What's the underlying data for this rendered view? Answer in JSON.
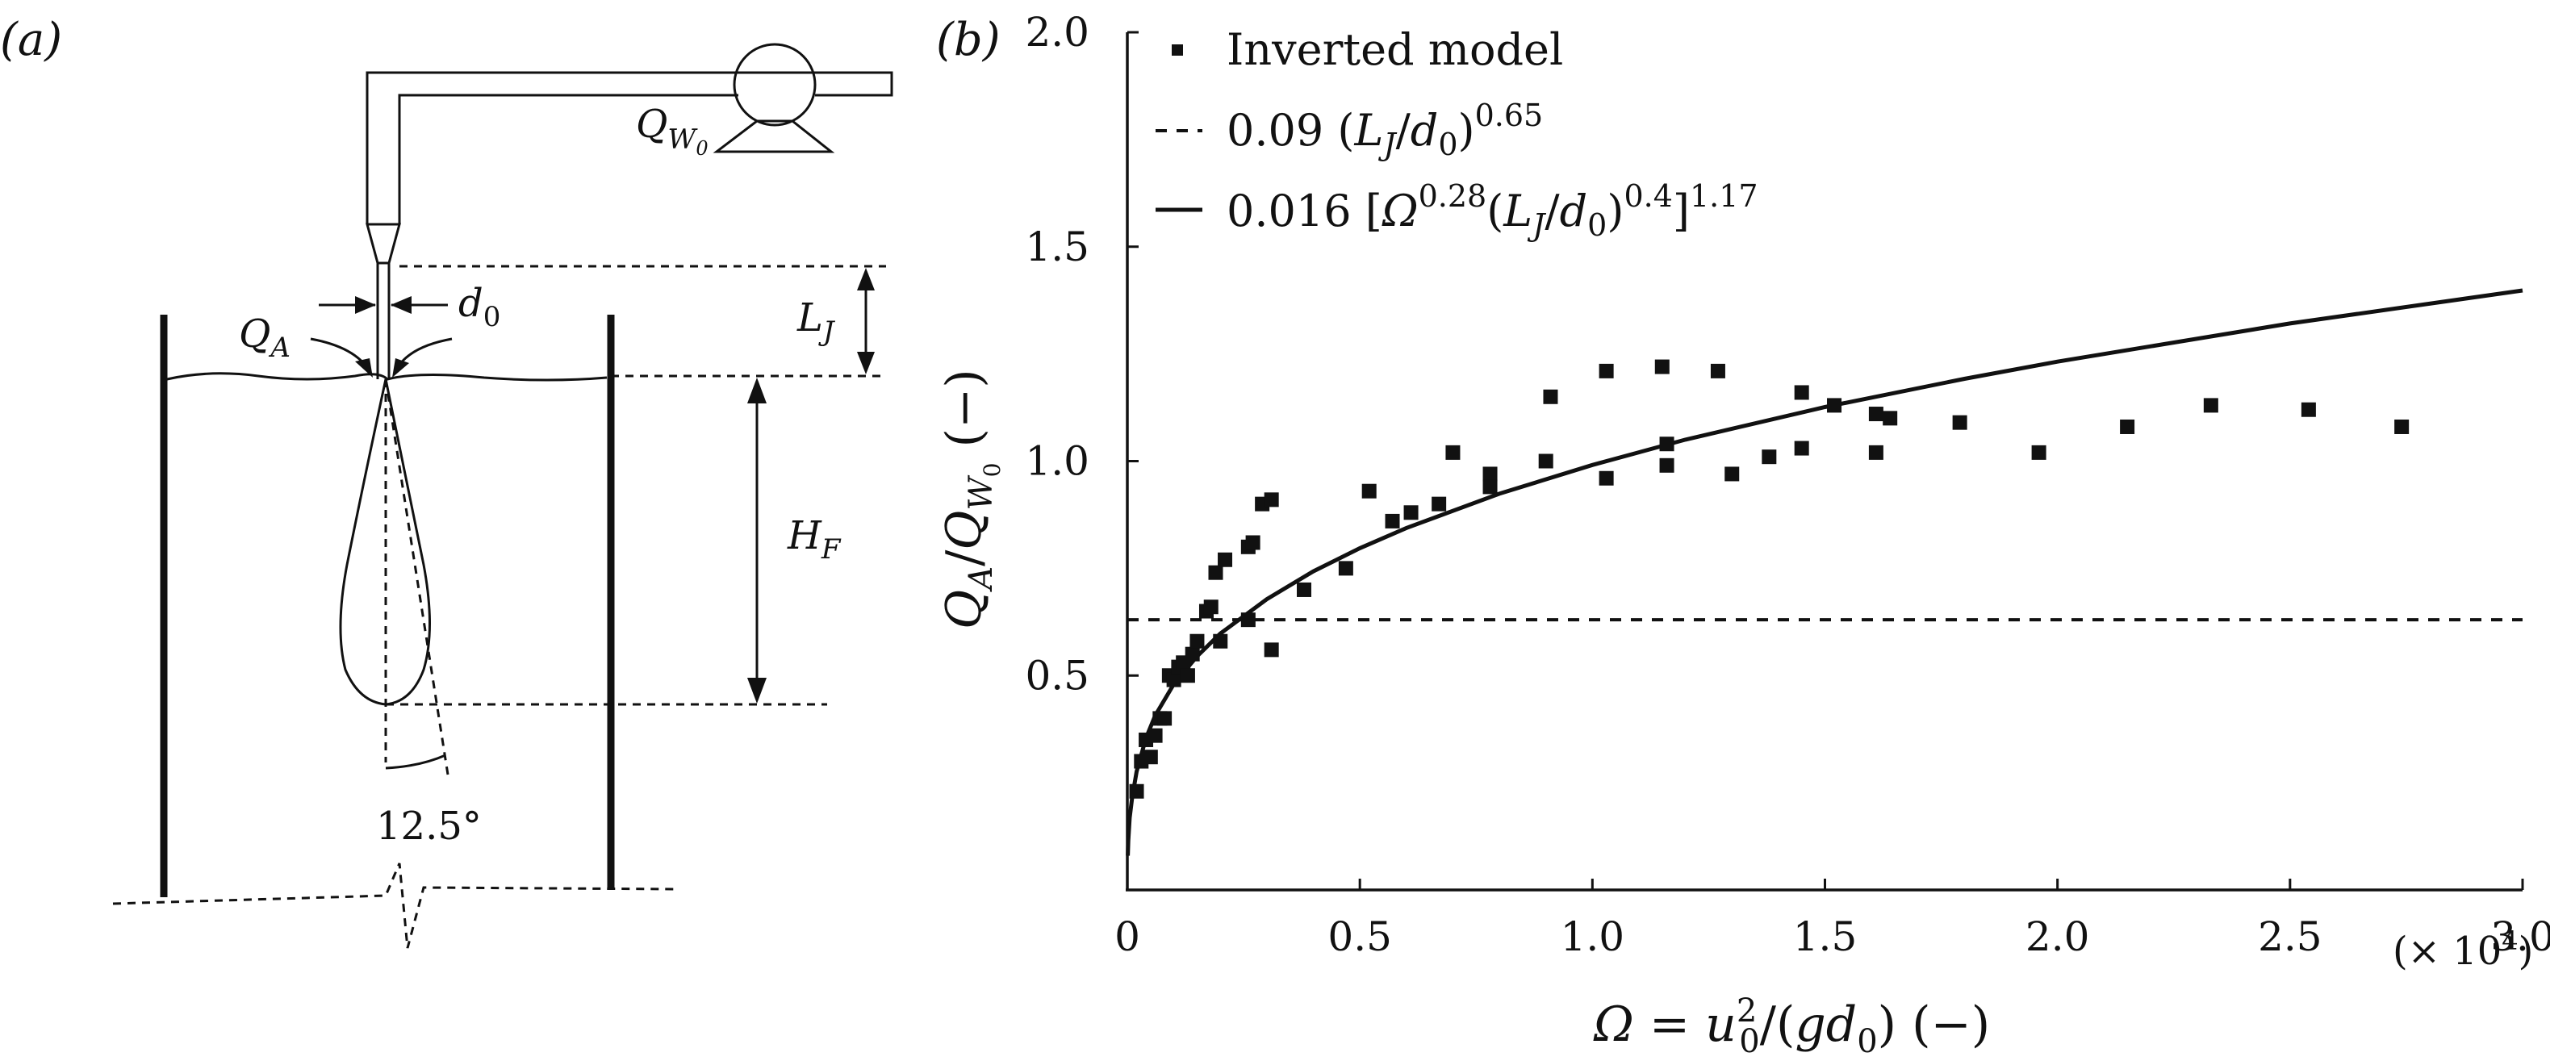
{
  "panel_a": {
    "label": "(a)",
    "q_w0": "Q",
    "q_w0_sub": "W",
    "q_w0_subsub": "0",
    "q_a": "Q",
    "q_a_sub": "A",
    "d0": "d",
    "d0_sub": "0",
    "l_j": "L",
    "l_j_sub": "J",
    "h_f": "H",
    "h_f_sub": "F",
    "angle": "12.5°"
  },
  "panel_b": {
    "label": "(b)",
    "legend": {
      "markers_label": "Inverted model",
      "dashed_label": "0.09 (L_J/d_0)^0.65",
      "solid_label": "0.016 [Ω^0.28 (L_J/d_0)^0.4]^1.17"
    },
    "ylabel": "Q_A / Q_W0 (−)",
    "xlabel": "Ω = u_0^2 / (g d_0) (−)",
    "x_multiplier": "(× 10^4)",
    "x_ticks": [
      "0",
      "0.5",
      "1.0",
      "1.5",
      "2.0",
      "2.5",
      "3.0"
    ],
    "y_ticks": [
      "0.5",
      "1.0",
      "1.5",
      "2.0"
    ]
  },
  "chart_data": {
    "type": "scatter",
    "xlim": [
      0,
      3.0
    ],
    "ylim": [
      0,
      2.0
    ],
    "x_tick_values": [
      0,
      0.5,
      1.0,
      1.5,
      2.0,
      2.5,
      3.0
    ],
    "y_tick_values": [
      0.5,
      1.0,
      1.5,
      2.0
    ],
    "legend_position": "top-left",
    "grid": false,
    "series": [
      {
        "name": "Inverted model",
        "kind": "markers",
        "x": [
          0.02,
          0.03,
          0.04,
          0.05,
          0.06,
          0.07,
          0.08,
          0.09,
          0.1,
          0.11,
          0.12,
          0.13,
          0.14,
          0.15,
          0.17,
          0.18,
          0.19,
          0.2,
          0.21,
          0.26,
          0.26,
          0.27,
          0.29,
          0.31,
          0.31,
          0.38,
          0.47,
          0.52,
          0.57,
          0.61,
          0.67,
          0.7,
          0.78,
          0.78,
          0.9,
          0.91,
          1.03,
          1.03,
          1.15,
          1.16,
          1.16,
          1.27,
          1.3,
          1.38,
          1.45,
          1.45,
          1.52,
          1.61,
          1.61,
          1.64,
          1.79,
          1.96,
          2.15,
          2.33,
          2.54,
          2.74
        ],
        "y": [
          0.23,
          0.3,
          0.35,
          0.31,
          0.36,
          0.4,
          0.4,
          0.5,
          0.49,
          0.52,
          0.53,
          0.5,
          0.55,
          0.58,
          0.65,
          0.66,
          0.74,
          0.58,
          0.77,
          0.8,
          0.63,
          0.81,
          0.9,
          0.56,
          0.91,
          0.7,
          0.75,
          0.93,
          0.86,
          0.88,
          0.9,
          1.02,
          0.97,
          0.94,
          1.0,
          1.15,
          1.21,
          0.96,
          1.22,
          1.04,
          0.99,
          1.21,
          0.97,
          1.01,
          1.03,
          1.16,
          1.13,
          1.11,
          1.02,
          1.1,
          1.09,
          1.02,
          1.08,
          1.13,
          1.12,
          1.08
        ]
      },
      {
        "name": "0.09 (L_J/d_0)^0.65",
        "kind": "dashed-line",
        "x": [
          0,
          3.0
        ],
        "y": [
          0.63,
          0.63
        ]
      },
      {
        "name": "0.016 [Ω^0.28 (L_J/d_0)^0.4]^1.17",
        "kind": "solid-line",
        "x": [
          0.001,
          0.002,
          0.005,
          0.01,
          0.02,
          0.04,
          0.06,
          0.1,
          0.15,
          0.2,
          0.3,
          0.4,
          0.5,
          0.6,
          0.8,
          1.0,
          1.2,
          1.5,
          1.8,
          2.0,
          2.5,
          3.0
        ],
        "y": [
          0.08,
          0.115,
          0.168,
          0.213,
          0.276,
          0.354,
          0.407,
          0.48,
          0.545,
          0.598,
          0.678,
          0.743,
          0.797,
          0.844,
          0.924,
          0.991,
          1.05,
          1.126,
          1.192,
          1.232,
          1.321,
          1.398
        ]
      }
    ]
  }
}
